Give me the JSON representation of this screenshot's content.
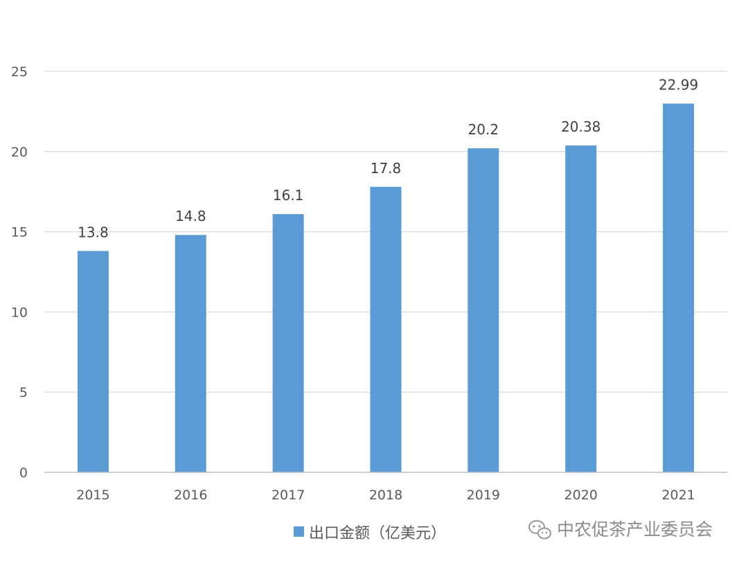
{
  "chart_data": {
    "type": "bar",
    "categories": [
      "2015",
      "2016",
      "2017",
      "2018",
      "2019",
      "2020",
      "2021"
    ],
    "series": [
      {
        "name": "出口金额（亿美元）",
        "values": [
          13.8,
          14.8,
          16.1,
          17.8,
          20.2,
          20.38,
          22.99
        ],
        "color": "#5b9bd5"
      }
    ],
    "data_labels": [
      "13.8",
      "14.8",
      "16.1",
      "17.8",
      "20.2",
      "20.38",
      "22.99"
    ],
    "y_ticks": [
      0,
      5,
      10,
      15,
      20,
      25
    ],
    "ylim": [
      0,
      25
    ],
    "grid": true,
    "legend_position": "bottom",
    "gridline_color": "#d9d9d9"
  },
  "watermark": {
    "text": "中农促茶产业委员会",
    "icon": "wechat-icon"
  }
}
